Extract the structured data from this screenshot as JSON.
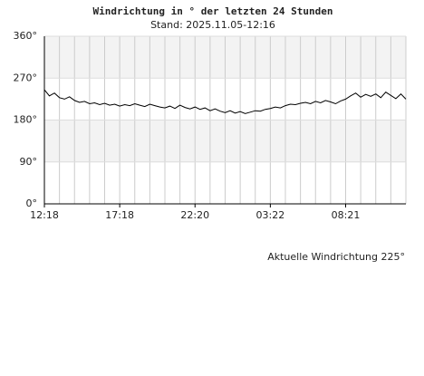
{
  "chart_data": {
    "type": "line",
    "title": "Windrichtung in ° der letzten 24 Stunden",
    "subtitle": "Stand: 2025.11.05-12:16",
    "annotation": "Aktuelle Windrichtung 225°",
    "categories": [
      "12:18",
      null,
      null,
      null,
      null,
      null,
      null,
      null,
      null,
      null,
      null,
      null,
      null,
      null,
      null,
      "17:18",
      null,
      null,
      null,
      null,
      null,
      null,
      null,
      null,
      null,
      null,
      null,
      null,
      null,
      null,
      "22:20",
      null,
      null,
      null,
      null,
      null,
      null,
      null,
      null,
      null,
      null,
      null,
      null,
      null,
      null,
      "03:22",
      null,
      null,
      null,
      null,
      null,
      null,
      null,
      null,
      null,
      null,
      null,
      null,
      null,
      null,
      "08:21",
      null,
      null,
      null,
      null,
      null,
      null,
      null,
      null,
      null,
      null,
      null,
      null
    ],
    "series": [
      {
        "name": "Windrichtung",
        "color": "#000000",
        "values": [
          245,
          232,
          238,
          228,
          225,
          230,
          222,
          218,
          220,
          215,
          217,
          213,
          216,
          212,
          214,
          210,
          213,
          211,
          215,
          212,
          209,
          214,
          211,
          208,
          206,
          210,
          205,
          212,
          207,
          204,
          208,
          203,
          206,
          200,
          204,
          199,
          196,
          200,
          195,
          198,
          194,
          197,
          200,
          199,
          203,
          205,
          208,
          206,
          211,
          214,
          213,
          216,
          218,
          215,
          220,
          217,
          222,
          219,
          215,
          221,
          225,
          232,
          238,
          229,
          235,
          231,
          236,
          228,
          240,
          233,
          226,
          236,
          225
        ]
      }
    ],
    "ylim": [
      0,
      360
    ],
    "yticks": [
      {
        "value": 0,
        "label": "0°"
      },
      {
        "value": 90,
        "label": "90°"
      },
      {
        "value": 180,
        "label": "180°"
      },
      {
        "value": 270,
        "label": "270°"
      },
      {
        "value": 360,
        "label": "360°"
      }
    ],
    "grid": true
  }
}
